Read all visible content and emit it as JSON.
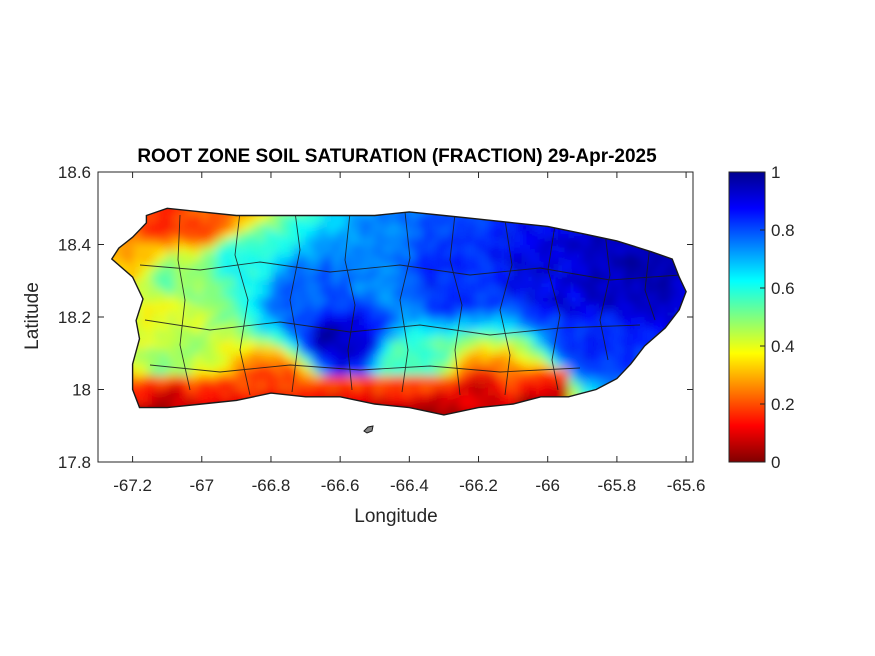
{
  "chart_data": {
    "type": "heatmap",
    "title": "ROOT ZONE SOIL SATURATION (FRACTION) 29-Apr-2025",
    "xlabel": "Longitude",
    "ylabel": "Latitude",
    "xlim": [
      -67.3,
      -65.58
    ],
    "ylim": [
      17.8,
      18.6
    ],
    "xticks": [
      -67.2,
      -67,
      -66.8,
      -66.6,
      -66.4,
      -66.2,
      -66,
      -65.8,
      -65.6
    ],
    "xtick_labels": [
      "-67.2",
      "-67",
      "-66.8",
      "-66.6",
      "-66.4",
      "-66.2",
      "-66",
      "-65.8",
      "-65.6"
    ],
    "yticks": [
      17.8,
      18,
      18.2,
      18.4,
      18.6
    ],
    "ytick_labels": [
      "17.8",
      "18",
      "18.2",
      "18.4",
      "18.6"
    ],
    "colorbar": {
      "colormap": "jet",
      "clim": [
        0,
        1
      ],
      "ticks": [
        0,
        0.2,
        0.4,
        0.6,
        0.8,
        1
      ],
      "tick_labels": [
        "0",
        "0.2",
        "0.4",
        "0.6",
        "0.8",
        "1"
      ],
      "placement": "right"
    },
    "region": "Puerto Rico",
    "grid": false,
    "outline": [
      [
        -67.16,
        18.48
      ],
      [
        -67.1,
        18.5
      ],
      [
        -67.0,
        18.49
      ],
      [
        -66.9,
        18.48
      ],
      [
        -66.8,
        18.48
      ],
      [
        -66.7,
        18.48
      ],
      [
        -66.6,
        18.48
      ],
      [
        -66.5,
        18.48
      ],
      [
        -66.4,
        18.49
      ],
      [
        -66.3,
        18.48
      ],
      [
        -66.2,
        18.47
      ],
      [
        -66.1,
        18.46
      ],
      [
        -66.0,
        18.45
      ],
      [
        -65.9,
        18.43
      ],
      [
        -65.8,
        18.41
      ],
      [
        -65.7,
        18.38
      ],
      [
        -65.64,
        18.36
      ],
      [
        -65.62,
        18.31
      ],
      [
        -65.6,
        18.27
      ],
      [
        -65.62,
        18.22
      ],
      [
        -65.66,
        18.17
      ],
      [
        -65.72,
        18.12
      ],
      [
        -65.76,
        18.07
      ],
      [
        -65.8,
        18.03
      ],
      [
        -65.86,
        18.0
      ],
      [
        -65.94,
        17.98
      ],
      [
        -66.02,
        17.98
      ],
      [
        -66.1,
        17.96
      ],
      [
        -66.2,
        17.95
      ],
      [
        -66.3,
        17.93
      ],
      [
        -66.4,
        17.95
      ],
      [
        -66.5,
        17.96
      ],
      [
        -66.6,
        17.98
      ],
      [
        -66.7,
        17.98
      ],
      [
        -66.8,
        17.99
      ],
      [
        -66.9,
        17.97
      ],
      [
        -67.0,
        17.96
      ],
      [
        -67.1,
        17.95
      ],
      [
        -67.18,
        17.95
      ],
      [
        -67.2,
        18.0
      ],
      [
        -67.2,
        18.07
      ],
      [
        -67.18,
        18.14
      ],
      [
        -67.19,
        18.19
      ],
      [
        -67.17,
        18.25
      ],
      [
        -67.2,
        18.31
      ],
      [
        -67.26,
        18.36
      ],
      [
        -67.24,
        18.39
      ],
      [
        -67.2,
        18.42
      ],
      [
        -67.16,
        18.46
      ]
    ],
    "values_sampled": {
      "description_points": [
        {
          "lon": -67.15,
          "lat": 18.47,
          "value": 0.15
        },
        {
          "lon": -67.0,
          "lat": 18.46,
          "value": 0.2
        },
        {
          "lon": -67.22,
          "lat": 18.36,
          "value": 0.3
        },
        {
          "lon": -67.17,
          "lat": 18.2,
          "value": 0.4
        },
        {
          "lon": -67.1,
          "lat": 18.3,
          "value": 0.5
        },
        {
          "lon": -66.9,
          "lat": 18.35,
          "value": 0.6
        },
        {
          "lon": -66.7,
          "lat": 18.25,
          "value": 0.8
        },
        {
          "lon": -66.5,
          "lat": 18.3,
          "value": 0.75
        },
        {
          "lon": -66.3,
          "lat": 18.3,
          "value": 0.85
        },
        {
          "lon": -66.0,
          "lat": 18.3,
          "value": 0.9
        },
        {
          "lon": -65.8,
          "lat": 18.3,
          "value": 0.95
        },
        {
          "lon": -66.6,
          "lat": 18.13,
          "value": 0.95
        },
        {
          "lon": -66.4,
          "lat": 18.06,
          "value": 0.55
        },
        {
          "lon": -67.1,
          "lat": 18.05,
          "value": 0.5
        },
        {
          "lon": -66.8,
          "lat": 18.0,
          "value": 0.2
        },
        {
          "lon": -67.1,
          "lat": 17.98,
          "value": 0.1
        },
        {
          "lon": -66.2,
          "lat": 17.97,
          "value": 0.1
        },
        {
          "lon": -66.05,
          "lat": 18.0,
          "value": 0.3
        },
        {
          "lon": -65.9,
          "lat": 18.1,
          "value": 0.85
        }
      ]
    }
  }
}
